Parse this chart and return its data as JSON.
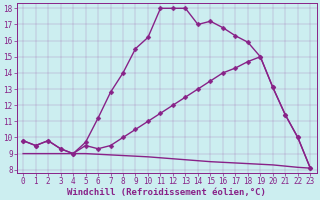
{
  "xlabel": "Windchill (Refroidissement éolien,°C)",
  "bg_color": "#cceef0",
  "line_color": "#882288",
  "xlim": [
    -0.5,
    23.5
  ],
  "ylim": [
    7.8,
    18.3
  ],
  "xticks": [
    0,
    1,
    2,
    3,
    4,
    5,
    6,
    7,
    8,
    9,
    10,
    11,
    12,
    13,
    14,
    15,
    16,
    17,
    18,
    19,
    20,
    21,
    22,
    23
  ],
  "yticks": [
    8,
    9,
    10,
    11,
    12,
    13,
    14,
    15,
    16,
    17,
    18
  ],
  "line1_x": [
    0,
    1,
    2,
    3,
    4,
    5,
    6,
    7,
    8,
    9,
    10,
    11,
    12,
    13,
    14,
    15,
    16,
    17,
    18,
    19,
    20,
    21,
    22,
    23
  ],
  "line1_y": [
    9.8,
    9.5,
    9.8,
    9.3,
    9.0,
    9.7,
    11.2,
    12.8,
    14.0,
    15.5,
    16.2,
    18.0,
    18.0,
    18.0,
    17.0,
    17.2,
    16.8,
    16.3,
    15.9,
    15.0,
    13.1,
    11.4,
    10.0,
    8.1
  ],
  "line2_x": [
    0,
    1,
    2,
    3,
    4,
    5,
    6,
    7,
    8,
    9,
    10,
    11,
    12,
    13,
    14,
    15,
    16,
    17,
    18,
    19,
    20,
    21,
    22,
    23
  ],
  "line2_y": [
    9.8,
    9.5,
    9.8,
    9.3,
    9.0,
    9.5,
    9.3,
    9.5,
    10.0,
    10.5,
    11.0,
    11.5,
    12.0,
    12.5,
    13.0,
    13.5,
    14.0,
    14.3,
    14.7,
    15.0,
    13.1,
    11.4,
    10.0,
    8.1
  ],
  "line3_x": [
    0,
    1,
    5,
    10,
    15,
    20,
    22,
    23
  ],
  "line3_y": [
    9.0,
    9.0,
    9.0,
    8.8,
    8.5,
    8.3,
    8.15,
    8.1
  ],
  "markersize": 2.5,
  "linewidth": 1.0,
  "label_fontsize": 6.5,
  "tick_fontsize": 5.5
}
